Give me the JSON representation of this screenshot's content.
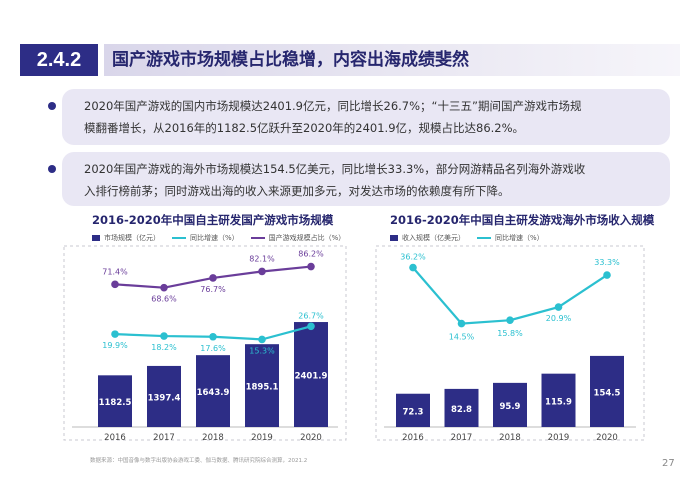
{
  "header": {
    "section_number": "2.4.2",
    "title": "国产游戏市场规模占比稳增，内容出海成绩斐然"
  },
  "bullets": [
    {
      "line1": "2020年国产游戏的国内市场规模达2401.9亿元，同比增长26.7%；“十三五”期间国产游戏市场规",
      "line2": "模翻番增长，从2016年的1182.5亿跃升至2020年的2401.9亿，规模占比达86.2%。"
    },
    {
      "line1": "2020年国产游戏的海外市场规模达154.5亿美元，同比增长33.3%，部分网游精品名列海外游戏收",
      "line2": "入排行榜前茅；同时游戏出海的收入来源更加多元，对发达市场的依赖度有所下降。"
    }
  ],
  "chart_data": [
    {
      "type": "bar",
      "title": "2016-2020年中国自主研发国产游戏市场规模",
      "categories": [
        "2016",
        "2017",
        "2018",
        "2019",
        "2020"
      ],
      "series": [
        {
          "name": "市场规模（亿元）",
          "kind": "bar",
          "color": "#2d2d86",
          "values": [
            1182.5,
            1397.4,
            1643.9,
            1895.1,
            2401.9
          ]
        },
        {
          "name": "同比增速（%）",
          "kind": "line",
          "color": "#2bc0d0",
          "values": [
            19.9,
            18.2,
            17.6,
            15.3,
            26.7
          ],
          "labels": [
            "19.9%",
            "18.2%",
            "17.6%",
            "15.3%",
            "26.7%"
          ]
        },
        {
          "name": "国产游戏规模占比（%）",
          "kind": "line",
          "color": "#6a3d9a",
          "values": [
            71.4,
            68.6,
            76.7,
            82.1,
            86.2
          ],
          "labels": [
            "71.4%",
            "68.6%",
            "76.7%",
            "82.1%",
            "86.2%"
          ]
        }
      ],
      "bar_labels": [
        "1182.5",
        "1397.4",
        "1643.9",
        "1895.1",
        "2401.9"
      ]
    },
    {
      "type": "bar",
      "title": "2016-2020年中国自主研发游戏海外市场收入规模",
      "categories": [
        "2016",
        "2017",
        "2018",
        "2019",
        "2020"
      ],
      "series": [
        {
          "name": "收入规模（亿美元）",
          "kind": "bar",
          "color": "#2d2d86",
          "values": [
            72.3,
            82.8,
            95.9,
            115.9,
            154.5
          ]
        },
        {
          "name": "同比增速（%）",
          "kind": "line",
          "color": "#2bc0d0",
          "values": [
            36.2,
            14.5,
            15.8,
            20.9,
            33.3
          ],
          "labels": [
            "36.2%",
            "14.5%",
            "15.8%",
            "20.9%",
            "33.3%"
          ]
        }
      ],
      "bar_labels": [
        "72.3",
        "82.8",
        "95.9",
        "115.9",
        "154.5"
      ]
    }
  ],
  "footnote": "数据来源：中国音像与数字出版协会游戏工委、伽马数据、腾讯研究院综合测算，2021.2",
  "page_number": "27"
}
